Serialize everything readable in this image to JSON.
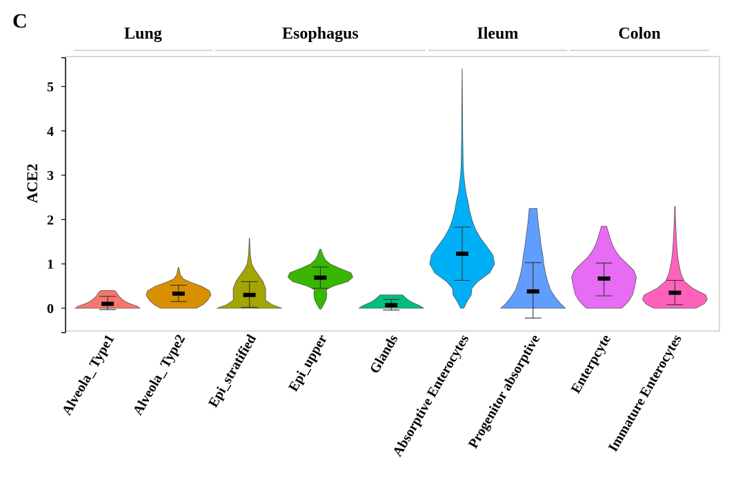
{
  "chart_data": {
    "type": "violin",
    "panel_label": "C",
    "ylabel": "ACE2",
    "xlabel": "",
    "ylim": [
      -0.55,
      5.65
    ],
    "y_ticks": [
      0,
      1,
      2,
      3,
      4,
      5
    ],
    "grid": false,
    "legend": "none",
    "groups": [
      {
        "name": "Lung",
        "categories": [
          "Alveola_ Type1",
          "Alveola_ Type2"
        ]
      },
      {
        "name": "Esophagus",
        "categories": [
          "Epi_stratified",
          "Epi_upper",
          "Glands"
        ]
      },
      {
        "name": "Ileum",
        "categories": [
          "Absorptive Enterocytes",
          "Progenitor absorptive"
        ]
      },
      {
        "name": "Colon",
        "categories": [
          "Enterpcyte",
          "Immature Enterocytes"
        ]
      }
    ],
    "series": [
      {
        "category": "Alveola_ Type1",
        "color": "#f8766d",
        "min": 0.0,
        "max": 0.4,
        "median": 0.1,
        "whisker_low": -0.03,
        "whisker_high": 0.27,
        "density": [
          [
            0,
            1.0
          ],
          [
            0.05,
            0.9
          ],
          [
            0.1,
            0.7
          ],
          [
            0.15,
            0.55
          ],
          [
            0.2,
            0.45
          ],
          [
            0.27,
            0.35
          ],
          [
            0.33,
            0.3
          ],
          [
            0.38,
            0.25
          ],
          [
            0.4,
            0.2
          ]
        ]
      },
      {
        "category": "Alveola_ Type2",
        "color": "#d89000",
        "min": 0.0,
        "max": 0.92,
        "median": 0.33,
        "whisker_low": 0.15,
        "whisker_high": 0.52,
        "density": [
          [
            0,
            0.55
          ],
          [
            0.08,
            0.75
          ],
          [
            0.18,
            0.9
          ],
          [
            0.3,
            1.0
          ],
          [
            0.4,
            0.95
          ],
          [
            0.5,
            0.7
          ],
          [
            0.58,
            0.4
          ],
          [
            0.66,
            0.15
          ],
          [
            0.75,
            0.06
          ],
          [
            0.85,
            0.03
          ],
          [
            0.92,
            0.01
          ]
        ]
      },
      {
        "category": "Epi_stratified",
        "color": "#a3a500",
        "min": 0.0,
        "max": 1.58,
        "median": 0.3,
        "whisker_low": 0.02,
        "whisker_high": 0.6,
        "density": [
          [
            0,
            1.0
          ],
          [
            0.08,
            0.7
          ],
          [
            0.18,
            0.5
          ],
          [
            0.3,
            0.5
          ],
          [
            0.45,
            0.5
          ],
          [
            0.6,
            0.42
          ],
          [
            0.75,
            0.28
          ],
          [
            0.88,
            0.15
          ],
          [
            1.0,
            0.07
          ],
          [
            1.2,
            0.03
          ],
          [
            1.4,
            0.015
          ],
          [
            1.58,
            0.005
          ]
        ]
      },
      {
        "category": "Epi_upper",
        "color": "#39b600",
        "min": -0.02,
        "max": 1.33,
        "median": 0.69,
        "whisker_low": 0.45,
        "whisker_high": 0.93,
        "density": [
          [
            -0.02,
            0.02
          ],
          [
            0.08,
            0.1
          ],
          [
            0.2,
            0.18
          ],
          [
            0.32,
            0.2
          ],
          [
            0.42,
            0.18
          ],
          [
            0.5,
            0.4
          ],
          [
            0.6,
            0.85
          ],
          [
            0.7,
            1.0
          ],
          [
            0.8,
            0.95
          ],
          [
            0.9,
            0.6
          ],
          [
            1.0,
            0.3
          ],
          [
            1.1,
            0.15
          ],
          [
            1.2,
            0.08
          ],
          [
            1.33,
            0.02
          ]
        ]
      },
      {
        "category": "Glands",
        "color": "#00bf7d",
        "min": 0.0,
        "max": 0.3,
        "median": 0.07,
        "whisker_low": -0.04,
        "whisker_high": 0.2,
        "density": [
          [
            0,
            1.0
          ],
          [
            0.05,
            0.9
          ],
          [
            0.1,
            0.75
          ],
          [
            0.15,
            0.6
          ],
          [
            0.2,
            0.5
          ],
          [
            0.25,
            0.42
          ],
          [
            0.3,
            0.35
          ]
        ]
      },
      {
        "category": "Absorptive Enterocytes",
        "color": "#00b0f6",
        "min": 0.0,
        "max": 5.4,
        "median": 1.23,
        "whisker_low": 0.63,
        "whisker_high": 1.83,
        "density": [
          [
            0,
            0.05
          ],
          [
            0.15,
            0.15
          ],
          [
            0.3,
            0.28
          ],
          [
            0.45,
            0.3
          ],
          [
            0.6,
            0.48
          ],
          [
            0.8,
            0.85
          ],
          [
            1.0,
            1.0
          ],
          [
            1.2,
            0.95
          ],
          [
            1.4,
            0.75
          ],
          [
            1.6,
            0.55
          ],
          [
            1.8,
            0.4
          ],
          [
            2.0,
            0.3
          ],
          [
            2.2,
            0.23
          ],
          [
            2.4,
            0.18
          ],
          [
            2.6,
            0.12
          ],
          [
            2.8,
            0.08
          ],
          [
            3.0,
            0.05
          ],
          [
            3.2,
            0.035
          ],
          [
            3.5,
            0.025
          ],
          [
            4.0,
            0.015
          ],
          [
            4.5,
            0.01
          ],
          [
            5.0,
            0.006
          ],
          [
            5.4,
            0.003
          ]
        ]
      },
      {
        "category": "Progenitor absorptive",
        "color": "#619cff",
        "min": 0.0,
        "max": 2.25,
        "median": 0.38,
        "whisker_low": -0.22,
        "whisker_high": 1.03,
        "density": [
          [
            0,
            1.0
          ],
          [
            0.1,
            0.85
          ],
          [
            0.25,
            0.68
          ],
          [
            0.4,
            0.55
          ],
          [
            0.6,
            0.45
          ],
          [
            0.8,
            0.38
          ],
          [
            1.0,
            0.33
          ],
          [
            1.2,
            0.3
          ],
          [
            1.4,
            0.25
          ],
          [
            1.6,
            0.22
          ],
          [
            1.8,
            0.18
          ],
          [
            2.0,
            0.15
          ],
          [
            2.25,
            0.12
          ]
        ]
      },
      {
        "category": "Enterpcyte",
        "color": "#e76bf3",
        "min": 0.0,
        "max": 1.85,
        "median": 0.67,
        "whisker_low": 0.28,
        "whisker_high": 1.02,
        "density": [
          [
            0,
            0.55
          ],
          [
            0.15,
            0.75
          ],
          [
            0.3,
            0.88
          ],
          [
            0.5,
            0.95
          ],
          [
            0.7,
            1.0
          ],
          [
            0.85,
            0.92
          ],
          [
            1.0,
            0.72
          ],
          [
            1.15,
            0.5
          ],
          [
            1.3,
            0.35
          ],
          [
            1.45,
            0.25
          ],
          [
            1.6,
            0.18
          ],
          [
            1.75,
            0.12
          ],
          [
            1.85,
            0.08
          ]
        ]
      },
      {
        "category": "Immature Enterocytes",
        "color": "#ff62bc",
        "min": 0.0,
        "max": 2.3,
        "median": 0.35,
        "whisker_low": 0.08,
        "whisker_high": 0.63,
        "density": [
          [
            0,
            0.65
          ],
          [
            0.1,
            0.9
          ],
          [
            0.2,
            1.0
          ],
          [
            0.3,
            0.95
          ],
          [
            0.45,
            0.55
          ],
          [
            0.6,
            0.3
          ],
          [
            0.75,
            0.2
          ],
          [
            0.9,
            0.15
          ],
          [
            1.1,
            0.1
          ],
          [
            1.3,
            0.07
          ],
          [
            1.5,
            0.05
          ],
          [
            1.8,
            0.03
          ],
          [
            2.1,
            0.015
          ],
          [
            2.3,
            0.008
          ]
        ]
      }
    ]
  }
}
